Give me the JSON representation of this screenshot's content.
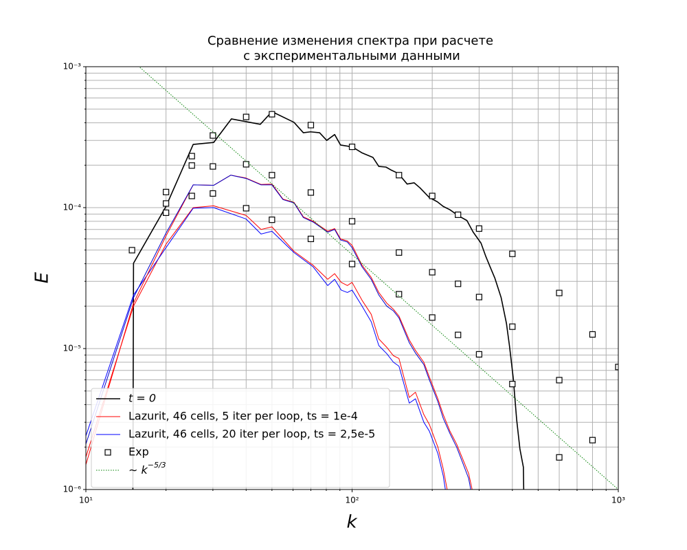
{
  "chart_data": {
    "type": "line",
    "title": [
      "Сравнение изменения спектра при расчете",
      "с экспериментальными данными"
    ],
    "xlabel": "k",
    "ylabel": "E",
    "xscale": "log",
    "yscale": "log",
    "xlim": [
      10,
      1000
    ],
    "ylim": [
      1e-06,
      0.001
    ],
    "xticks": [
      {
        "value": 10,
        "label": "10¹"
      },
      {
        "value": 100,
        "label": "10²"
      },
      {
        "value": 1000,
        "label": "10³"
      }
    ],
    "yticks": [
      {
        "value": 1e-06,
        "label": "10⁻⁶"
      },
      {
        "value": 1e-05,
        "label": "10⁻⁵"
      },
      {
        "value": 0.0001,
        "label": "10⁻⁴"
      },
      {
        "value": 0.001,
        "label": "10⁻³"
      }
    ],
    "xminorticks": [
      20,
      30,
      40,
      50,
      60,
      70,
      80,
      90,
      200,
      300,
      400,
      500,
      600,
      700,
      800,
      900
    ],
    "yminorticks": [
      2e-06,
      3e-06,
      4e-06,
      5e-06,
      6e-06,
      7e-06,
      8e-06,
      9e-06,
      2e-05,
      3e-05,
      4e-05,
      5e-05,
      6e-05,
      7e-05,
      8e-05,
      9e-05,
      0.0002,
      0.0003,
      0.0004,
      0.0005,
      0.0006,
      0.0007,
      0.0008,
      0.0009
    ],
    "grid": true,
    "legend": "lower left",
    "series": [
      {
        "name": "t = 0",
        "color": "#000000",
        "width": 1.6,
        "linestyle": "solid",
        "x": [
          15.0,
          15.1,
          20,
          25.3,
          30.2,
          35.2,
          45.2,
          50,
          60.5,
          65.6,
          69.8,
          75.5,
          80.3,
          86,
          90.5,
          100,
          108.8,
          119.8,
          126,
          134,
          140,
          149,
          161,
          171,
          180,
          195,
          209,
          220,
          233,
          251,
          270,
          285,
          305,
          318,
          330,
          344,
          363,
          380,
          390,
          403,
          415,
          427,
          440,
          442
        ],
        "values": [
          5e-07,
          4.03e-05,
          0.000102,
          0.000281,
          0.00029,
          0.000426,
          0.00039,
          0.00048,
          0.000403,
          0.00034,
          0.000345,
          0.00034,
          0.0003,
          0.00033,
          0.000278,
          0.00027,
          0.000245,
          0.000227,
          0.000196,
          0.000194,
          0.000185,
          0.000175,
          0.000147,
          0.00015,
          0.000138,
          0.000118,
          0.00011,
          0.000102,
          9.66e-05,
          8.75e-05,
          8.1e-05,
          6.7e-05,
          5.6e-05,
          4.5e-05,
          3.8e-05,
          3.15e-05,
          2.3e-05,
          1.51e-05,
          1.05e-05,
          6.2e-06,
          3.15e-06,
          1.94e-06,
          1.44e-06,
          8e-07
        ]
      },
      {
        "name": "Lazurit, 46 cells, 5 iter per loop, ts = 1e-4",
        "color": "#ff0000",
        "width": 1,
        "linestyle": "solid",
        "x": [
          10,
          15.1,
          20,
          25.3,
          30.2,
          40,
          45.5,
          50,
          60.5,
          71.4,
          81,
          86,
          91,
          96,
          100,
          109,
          118,
          126,
          135,
          143,
          150,
          164,
          173,
          186,
          195,
          210,
          220,
          230
        ],
        "values": [
          1.7e-06,
          2e-05,
          5.5e-05,
          0.0001,
          0.000103,
          8.8e-05,
          7e-05,
          7.3e-05,
          4.9e-05,
          3.9e-05,
          3.1e-05,
          3.4e-05,
          2.95e-05,
          2.8e-05,
          2.95e-05,
          2.2e-05,
          1.75e-05,
          1.17e-05,
          1.02e-05,
          8.9e-06,
          8.5e-06,
          4.5e-06,
          4.9e-06,
          3.4e-06,
          2.9e-06,
          2e-06,
          1.4e-06,
          9e-07
        ]
      },
      {
        "name": "Lazurit, 46 cells, 20 iter per loop, ts = 2,5e-5",
        "color": "#0000ff",
        "width": 1,
        "linestyle": "solid",
        "x": [
          10,
          15.1,
          20,
          25.3,
          30.2,
          40,
          45.5,
          50,
          60.5,
          71.4,
          81,
          86,
          91,
          96,
          100,
          109,
          118,
          126,
          135,
          143,
          150,
          164,
          173,
          186,
          195,
          210,
          220,
          226
        ],
        "values": [
          2.4e-06,
          2.4e-05,
          5.2e-05,
          9.9e-05,
          0.0001,
          8.3e-05,
          6.5e-05,
          6.8e-05,
          4.8e-05,
          3.8e-05,
          2.8e-05,
          3.1e-05,
          2.6e-05,
          2.5e-05,
          2.6e-05,
          2e-05,
          1.55e-05,
          1.05e-05,
          9.2e-06,
          8e-06,
          7.5e-06,
          4.1e-06,
          4.4e-06,
          3e-06,
          2.6e-06,
          1.8e-06,
          1.25e-06,
          9e-07
        ]
      },
      {
        "color": "#ff0000",
        "width": 1,
        "linestyle": "solid",
        "x": [
          10,
          15.1,
          20,
          25.3,
          30.2,
          35,
          40,
          45.5,
          50,
          55,
          60.5,
          65.6,
          71.4,
          76.6,
          81,
          86,
          90.5,
          96,
          100,
          109,
          118,
          126,
          135,
          143,
          150,
          164,
          173,
          186,
          195,
          210,
          220,
          233,
          247,
          262,
          274,
          286
        ],
        "values": [
          1.5e-06,
          2.1e-05,
          6.3e-05,
          0.000145,
          0.000144,
          0.00017,
          0.000162,
          0.000146,
          0.000147,
          0.000115,
          0.000109,
          8.6e-05,
          8e-05,
          7.3e-05,
          6.8e-05,
          7.1e-05,
          6e-05,
          5.8e-05,
          5.4e-05,
          3.9e-05,
          3.2e-05,
          2.5e-05,
          2.1e-05,
          1.9e-05,
          1.7e-05,
          1.15e-05,
          9.7e-06,
          8e-06,
          6.3e-06,
          4.4e-06,
          3.4e-06,
          2.6e-06,
          2.1e-06,
          1.6e-06,
          1.3e-06,
          9e-07
        ]
      },
      {
        "color": "#0000cc",
        "width": 1,
        "linestyle": "solid",
        "x": [
          10,
          15.1,
          20,
          25.3,
          30.2,
          35,
          40,
          45.5,
          50,
          55,
          60.5,
          65.6,
          71.4,
          76.6,
          81,
          86,
          90.5,
          96,
          100,
          109,
          118,
          126,
          135,
          143,
          150,
          164,
          173,
          186,
          195,
          210,
          220,
          233,
          247,
          262,
          274,
          282
        ],
        "values": [
          2.1e-06,
          2.3e-05,
          6.6e-05,
          0.000145,
          0.000144,
          0.00017,
          0.000161,
          0.000145,
          0.000145,
          0.000114,
          0.000108,
          8.5e-05,
          7.9e-05,
          7.2e-05,
          6.7e-05,
          7e-05,
          5.9e-05,
          5.7e-05,
          5.2e-05,
          3.8e-05,
          3.1e-05,
          2.4e-05,
          2e-05,
          1.85e-05,
          1.65e-05,
          1.1e-05,
          9.3e-06,
          7.7e-06,
          6e-06,
          4.2e-06,
          3.2e-06,
          2.5e-06,
          2e-06,
          1.5e-06,
          1.2e-06,
          9e-07
        ]
      },
      {
        "name": "Exp",
        "color": "#000000",
        "marker": "square",
        "linestyle": "none",
        "x": [
          14.9,
          20,
          20,
          20,
          25,
          25,
          25,
          30,
          30,
          30,
          40,
          40,
          40,
          50,
          50,
          50,
          70,
          70,
          70,
          100,
          100,
          100,
          150,
          150,
          150,
          200,
          200,
          200,
          250,
          250,
          250,
          300,
          300,
          300,
          400,
          400,
          400,
          600,
          600,
          600,
          800,
          800,
          1000
        ],
        "values": [
          4.99e-05,
          0.000129,
          0.000107,
          9.2e-05,
          0.000232,
          0.000199,
          0.000121,
          0.000325,
          0.000196,
          0.000126,
          0.00044,
          0.000203,
          9.9e-05,
          0.00046,
          0.00017,
          8.2e-05,
          0.000385,
          0.000128,
          6e-05,
          0.00027,
          8e-05,
          3.98e-05,
          0.00017,
          4.8e-05,
          2.43e-05,
          0.000121,
          3.48e-05,
          1.66e-05,
          8.9e-05,
          2.88e-05,
          1.25e-05,
          7.1e-05,
          2.32e-05,
          9.1e-06,
          4.7e-05,
          1.43e-05,
          5.6e-06,
          2.48e-05,
          5.97e-06,
          1.69e-06,
          1.26e-05,
          2.24e-06,
          7.4e-06
        ]
      },
      {
        "name": "∼ k",
        "exponent": "−5/3",
        "color": "#008000",
        "width": 1,
        "linestyle": "dotted",
        "x": [
          10,
          1000
        ],
        "values": [
          0.002154,
          1e-06
        ]
      }
    ]
  }
}
